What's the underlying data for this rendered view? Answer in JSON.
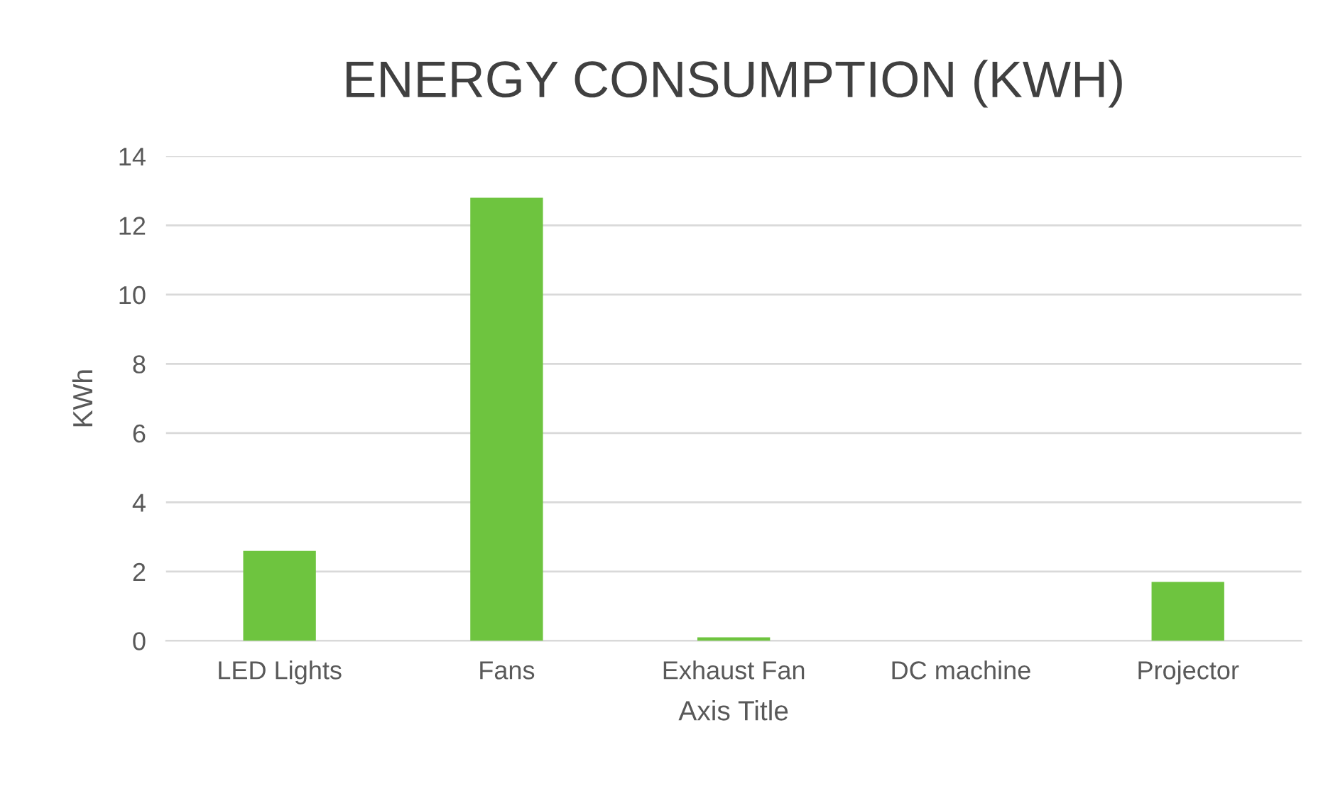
{
  "chart_data": {
    "type": "bar",
    "title": "ENERGY CONSUMPTION (KWH)",
    "xlabel": "Axis Title",
    "ylabel": "KWh",
    "categories": [
      "LED Lights",
      "Fans",
      "Exhaust Fan",
      "DC machine",
      "Projector"
    ],
    "values": [
      2.6,
      12.8,
      0.1,
      0,
      1.7
    ],
    "color": "#6ec43f",
    "ylim": [
      0,
      14
    ],
    "yticks": [
      0,
      2,
      4,
      6,
      8,
      10,
      12,
      14
    ],
    "grid": "y"
  }
}
